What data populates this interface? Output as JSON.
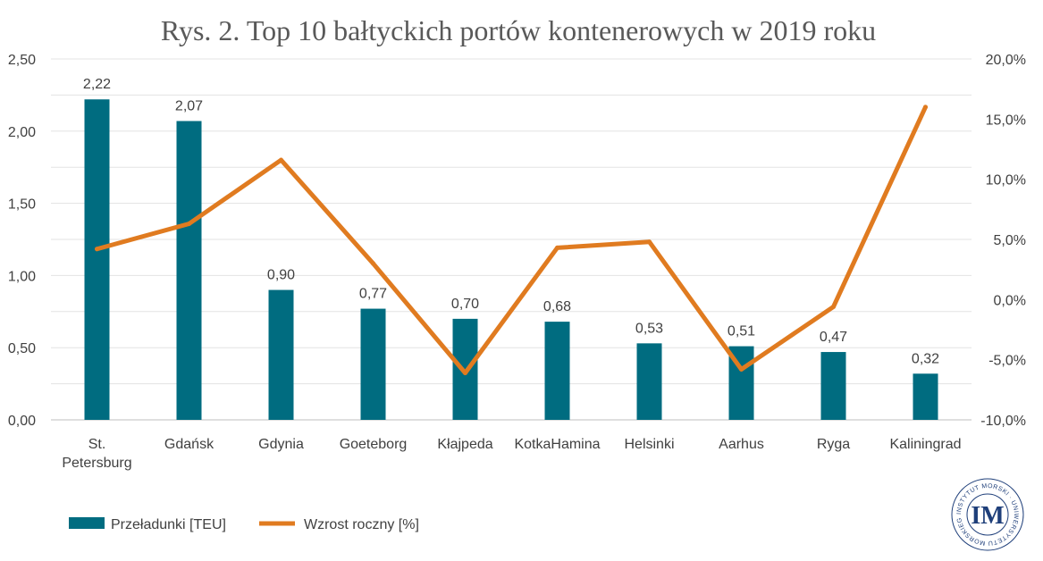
{
  "chart_data": {
    "type": "bar+line",
    "title": "Rys. 2. Top 10 bałtyckich portów kontenerowych w 2019 roku",
    "categories": [
      "St. Petersburg",
      "Gdańsk",
      "Gdynia",
      "Goeteborg",
      "Kłajpeda",
      "KotkaHamina",
      "Helsinki",
      "Aarhus",
      "Ryga",
      "Kaliningrad"
    ],
    "category_lines": [
      [
        "St.",
        "Petersburg"
      ],
      [
        "Gdańsk"
      ],
      [
        "Gdynia"
      ],
      [
        "Goeteborg"
      ],
      [
        "Kłajpeda"
      ],
      [
        "KotkaHamina"
      ],
      [
        "Helsinki"
      ],
      [
        "Aarhus"
      ],
      [
        "Ryga"
      ],
      [
        "Kaliningrad"
      ]
    ],
    "series": [
      {
        "name": "Przeładunki [TEU]",
        "type": "bar",
        "axis": "left",
        "color": "#006C80",
        "values": [
          2.22,
          2.07,
          0.9,
          0.77,
          0.7,
          0.68,
          0.53,
          0.51,
          0.47,
          0.32
        ],
        "data_labels": [
          "2,22",
          "2,07",
          "0,90",
          "0,77",
          "0,70",
          "0,68",
          "0,53",
          "0,51",
          "0,47",
          "0,32"
        ]
      },
      {
        "name": "Wzrost roczny [%]",
        "type": "line",
        "axis": "right",
        "color": "#E07B20",
        "values": [
          4.2,
          6.3,
          11.6,
          3.0,
          -6.1,
          4.3,
          4.8,
          -5.8,
          -0.6,
          16.0
        ]
      }
    ],
    "y_left": {
      "min": 0,
      "max": 2.5,
      "step": 0.25,
      "tick_labels": [
        "0,00",
        "0,50",
        "1,00",
        "1,50",
        "2,00",
        "2,50"
      ],
      "tick_values": [
        0,
        0.5,
        1.0,
        1.5,
        2.0,
        2.5
      ]
    },
    "y_right": {
      "min": -10,
      "max": 20,
      "tick_labels": [
        "-10,0%",
        "-5,0%",
        "0,0%",
        "5,0%",
        "10,0%",
        "15,0%",
        "20,0%"
      ],
      "tick_values": [
        -10,
        -5,
        0,
        5,
        10,
        15,
        20
      ]
    },
    "legend_position": "bottom-left",
    "grid": true
  },
  "logo": {
    "ring_text": "INSTYTUT MORSKI · UNIWERSYTETU MORSKIEGO W GDYNI",
    "monogram": "IM",
    "color": "#1F3F7A"
  }
}
